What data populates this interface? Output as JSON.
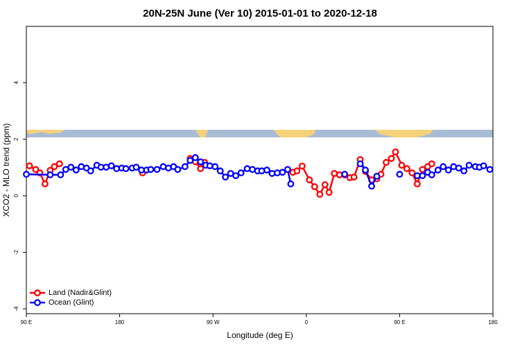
{
  "chart_data": {
    "type": "line",
    "title": "20N-25N June (Ver 10)   2015-01-01 to 2020-12-18",
    "x_label": "Longitude (deg E)",
    "y_label": "XCO2 - MLO trend (ppm)",
    "xlim": [
      90,
      540
    ],
    "xticks": [
      {
        "value": 90,
        "label": "90 E"
      },
      180,
      {
        "value": 270,
        "label": "90 W"
      },
      {
        "value": 360,
        "label": "0"
      },
      {
        "value": 450,
        "label": "90 E"
      },
      {
        "value": 540,
        "label": "180"
      }
    ],
    "ylim": [
      -4.17,
      5.99
    ],
    "yticks": [
      -4,
      -2,
      0,
      2,
      4
    ],
    "legend": "bottom-left",
    "series": [
      {
        "name": "Land (Nadir&Glint)",
        "color": "#ff0000",
        "x": [
          93,
          99,
          103,
          108,
          113,
          117,
          122,
          null,
          202,
          null,
          248,
          253,
          258,
          262,
          null,
          347,
          351,
          356,
          363,
          368,
          373,
          378,
          382,
          387,
          392,
          397,
          402,
          406,
          412,
          417,
          423,
          428,
          432,
          437,
          442,
          446,
          452,
          457,
          462,
          467,
          472,
          477,
          481
        ],
        "values": [
          1.06,
          0.93,
          0.81,
          0.42,
          0.9,
          1.03,
          1.13,
          null,
          0.81,
          null,
          1.32,
          1.2,
          0.96,
          1.18,
          null,
          0.83,
          0.88,
          1.05,
          0.56,
          0.32,
          0.05,
          0.39,
          0.12,
          0.79,
          0.74,
          0.74,
          0.64,
          0.66,
          1.28,
          0.86,
          0.56,
          0.6,
          0.76,
          1.18,
          1.32,
          1.55,
          1.08,
          0.96,
          0.81,
          0.42,
          0.93,
          1.03,
          1.13
        ]
      },
      {
        "name": "Ocean (Glint)",
        "color": "#0000ff",
        "x": [
          90,
          113,
          123,
          128,
          133,
          138,
          143,
          148,
          152,
          158,
          162,
          167,
          172,
          177,
          182,
          186,
          192,
          196,
          201,
          206,
          210,
          216,
          222,
          227,
          232,
          236,
          243,
          248,
          253,
          258,
          263,
          267,
          272,
          277,
          282,
          287,
          292,
          297,
          303,
          308,
          313,
          317,
          322,
          327,
          332,
          337,
          342,
          345,
          null,
          397,
          null,
          412,
          417,
          423,
          428,
          null,
          450,
          null,
          467,
          472,
          477,
          481,
          487,
          492,
          497,
          502,
          507,
          512,
          517,
          523,
          527,
          531,
          537
        ],
        "values": [
          0.76,
          0.74,
          0.74,
          0.93,
          1.01,
          0.91,
          1.03,
          0.98,
          0.88,
          1.08,
          1.01,
          1.01,
          1.06,
          0.96,
          0.98,
          0.96,
          0.98,
          1.01,
          0.91,
          0.91,
          0.93,
          0.93,
          1.03,
          0.98,
          1.03,
          0.93,
          1.03,
          1.25,
          1.35,
          1.2,
          1.08,
          1.06,
          1.03,
          0.88,
          0.66,
          0.79,
          0.71,
          0.81,
          0.96,
          0.93,
          0.88,
          0.88,
          0.91,
          0.79,
          0.81,
          0.83,
          0.93,
          0.42,
          null,
          0.76,
          null,
          1.13,
          0.91,
          0.34,
          0.69,
          null,
          0.76,
          null,
          0.71,
          0.71,
          0.83,
          0.74,
          0.91,
          1.03,
          0.91,
          1.03,
          0.98,
          0.88,
          1.08,
          1.03,
          1.01,
          1.06,
          0.93
        ]
      }
    ]
  }
}
